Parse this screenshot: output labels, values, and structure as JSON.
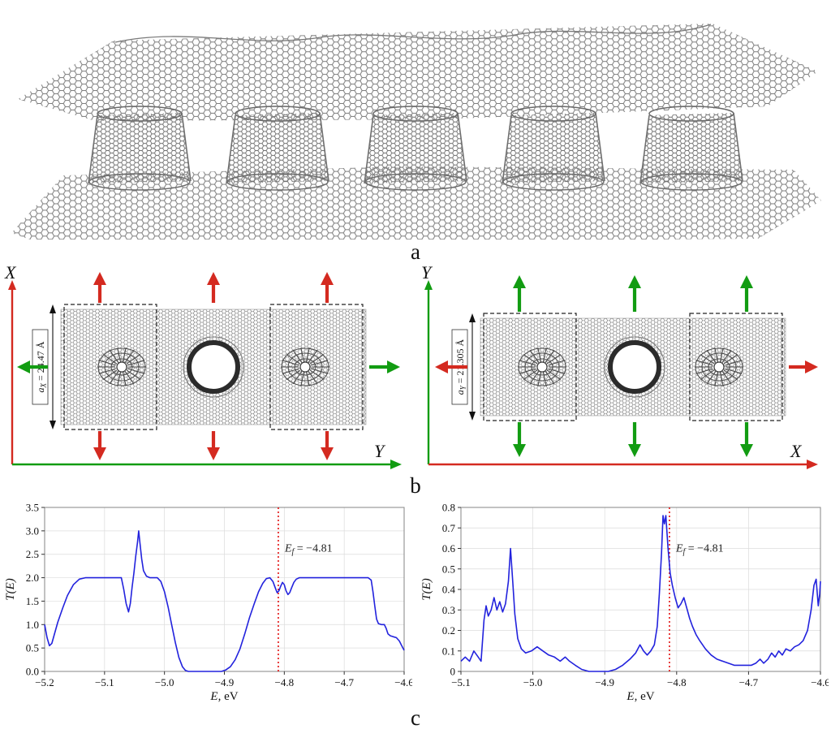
{
  "figure": {
    "panel_a_label": "a",
    "panel_b_label": "b",
    "panel_c_label": "c"
  },
  "panel_b": {
    "left": {
      "vaxis_label": "X",
      "haxis_label": "Y",
      "vaxis_color": "#d42a20",
      "haxis_color": "#129c12",
      "vert_arrow_color": "#d42a20",
      "horiz_arrow_color": "#129c12",
      "dim_sym": "a",
      "dim_sub": "X",
      "dim_rest": " = 24.47 Å"
    },
    "right": {
      "vaxis_label": "Y",
      "haxis_label": "X",
      "vaxis_color": "#129c12",
      "haxis_color": "#d42a20",
      "vert_arrow_color": "#129c12",
      "horiz_arrow_color": "#d42a20",
      "dim_sym": "a",
      "dim_sub": "Y",
      "dim_rest": " = 21.305 Å"
    }
  },
  "chart_data": [
    {
      "type": "line",
      "title": "",
      "xlabel": "E, eV",
      "xlabel_italic": "E",
      "xlabel_rest": ", eV",
      "ylabel": "T(E)",
      "xlim": [
        -5.2,
        -4.6
      ],
      "ylim": [
        0,
        3.5
      ],
      "grid": true,
      "legend": "none",
      "xtick_values": [
        -5.2,
        -5.1,
        -5.0,
        -4.9,
        -4.8,
        -4.7,
        -4.6
      ],
      "xtick_labels": [
        "−5.2",
        "−5.1",
        "−5.0",
        "−4.9",
        "−4.8",
        "−4.7",
        "−4.6"
      ],
      "ytick_values": [
        0,
        0.5,
        1.0,
        1.5,
        2.0,
        2.5,
        3.0,
        3.5
      ],
      "ytick_labels": [
        "0.0",
        "0.5",
        "1.0",
        "1.5",
        "2.0",
        "2.5",
        "3.0",
        "3.5"
      ],
      "line_color": "#2222dd",
      "fermi_x": -4.81,
      "fermi_color": "#e00000",
      "fermi_sym": "E",
      "fermi_sub": "f",
      "fermi_rest": " = −4.81",
      "x": [
        -5.2,
        -5.196,
        -5.192,
        -5.188,
        -5.184,
        -5.178,
        -5.17,
        -5.162,
        -5.152,
        -5.142,
        -5.132,
        -5.12,
        -5.1,
        -5.08,
        -5.072,
        -5.068,
        -5.064,
        -5.06,
        -5.057,
        -5.054,
        -5.051,
        -5.048,
        -5.045,
        -5.043,
        -5.041,
        -5.038,
        -5.035,
        -5.03,
        -5.024,
        -5.012,
        -5.006,
        -5.0,
        -4.994,
        -4.988,
        -4.982,
        -4.976,
        -4.97,
        -4.965,
        -4.96,
        -4.94,
        -4.92,
        -4.905,
        -4.898,
        -4.89,
        -4.882,
        -4.874,
        -4.866,
        -4.858,
        -4.85,
        -4.843,
        -4.836,
        -4.83,
        -4.824,
        -4.819,
        -4.815,
        -4.812,
        -4.809,
        -4.806,
        -4.803,
        -4.8,
        -4.797,
        -4.794,
        -4.791,
        -4.788,
        -4.784,
        -4.78,
        -4.775,
        -4.76,
        -4.74,
        -4.72,
        -4.7,
        -4.68,
        -4.66,
        -4.655,
        -4.652,
        -4.649,
        -4.646,
        -4.643,
        -4.638,
        -4.633,
        -4.63,
        -4.627,
        -4.623,
        -4.618,
        -4.613,
        -4.608,
        -4.604,
        -4.6
      ],
      "y": [
        1.0,
        0.72,
        0.55,
        0.6,
        0.78,
        1.05,
        1.35,
        1.62,
        1.85,
        1.97,
        2.0,
        2.0,
        2.0,
        2.0,
        2.0,
        1.75,
        1.45,
        1.27,
        1.45,
        1.8,
        2.1,
        2.45,
        2.75,
        3.0,
        2.75,
        2.4,
        2.15,
        2.03,
        2.0,
        2.0,
        1.92,
        1.7,
        1.38,
        1.0,
        0.62,
        0.3,
        0.1,
        0.02,
        0.0,
        0.0,
        0.0,
        0.0,
        0.03,
        0.1,
        0.25,
        0.48,
        0.8,
        1.15,
        1.45,
        1.7,
        1.88,
        1.98,
        2.0,
        1.92,
        1.78,
        1.68,
        1.72,
        1.82,
        1.9,
        1.85,
        1.72,
        1.64,
        1.68,
        1.78,
        1.9,
        1.97,
        2.0,
        2.0,
        2.0,
        2.0,
        2.0,
        2.0,
        2.0,
        1.95,
        1.7,
        1.4,
        1.12,
        1.02,
        1.0,
        1.0,
        0.92,
        0.8,
        0.76,
        0.74,
        0.72,
        0.65,
        0.55,
        0.45
      ]
    },
    {
      "type": "line",
      "title": "",
      "xlabel": "E, eV",
      "xlabel_italic": "E",
      "xlabel_rest": ", eV",
      "ylabel": "T(E)",
      "xlim": [
        -5.1,
        -4.6
      ],
      "ylim": [
        0,
        0.8
      ],
      "grid": true,
      "legend": "none",
      "xtick_values": [
        -5.1,
        -5.0,
        -4.9,
        -4.8,
        -4.7,
        -4.6
      ],
      "xtick_labels": [
        "−5.1",
        "−5.0",
        "−4.9",
        "−4.8",
        "−4.7",
        "−4.6"
      ],
      "ytick_values": [
        0,
        0.1,
        0.2,
        0.3,
        0.4,
        0.5,
        0.6,
        0.7,
        0.8
      ],
      "ytick_labels": [
        "0",
        "0.1",
        "0.2",
        "0.3",
        "0.4",
        "0.5",
        "0.6",
        "0.7",
        "0.8"
      ],
      "line_color": "#2222dd",
      "fermi_x": -4.81,
      "fermi_color": "#e00000",
      "fermi_sym": "E",
      "fermi_sub": "f",
      "fermi_rest": " = −4.81",
      "x": [
        -5.1,
        -5.094,
        -5.088,
        -5.082,
        -5.076,
        -5.072,
        -5.068,
        -5.065,
        -5.062,
        -5.058,
        -5.054,
        -5.05,
        -5.046,
        -5.042,
        -5.038,
        -5.034,
        -5.031,
        -5.028,
        -5.025,
        -5.021,
        -5.016,
        -5.01,
        -5.002,
        -4.994,
        -4.986,
        -4.978,
        -4.97,
        -4.962,
        -4.955,
        -4.949,
        -4.941,
        -4.932,
        -4.922,
        -4.91,
        -4.895,
        -4.885,
        -4.875,
        -4.865,
        -4.857,
        -4.851,
        -4.846,
        -4.841,
        -4.836,
        -4.831,
        -4.827,
        -4.824,
        -4.821,
        -4.819,
        -4.817,
        -4.815,
        -4.812,
        -4.809,
        -4.806,
        -4.802,
        -4.798,
        -4.794,
        -4.79,
        -4.786,
        -4.782,
        -4.778,
        -4.773,
        -4.768,
        -4.76,
        -4.752,
        -4.744,
        -4.736,
        -4.728,
        -4.72,
        -4.712,
        -4.704,
        -4.696,
        -4.69,
        -4.684,
        -4.679,
        -4.673,
        -4.668,
        -4.663,
        -4.658,
        -4.653,
        -4.648,
        -4.642,
        -4.636,
        -4.63,
        -4.624,
        -4.618,
        -4.613,
        -4.609,
        -4.606,
        -4.603,
        -4.601,
        -4.6
      ],
      "y": [
        0.05,
        0.07,
        0.05,
        0.1,
        0.07,
        0.05,
        0.25,
        0.32,
        0.27,
        0.3,
        0.36,
        0.3,
        0.34,
        0.29,
        0.33,
        0.44,
        0.6,
        0.44,
        0.28,
        0.16,
        0.11,
        0.09,
        0.1,
        0.12,
        0.1,
        0.08,
        0.07,
        0.05,
        0.07,
        0.05,
        0.03,
        0.01,
        0.0,
        0.0,
        0.0,
        0.01,
        0.03,
        0.06,
        0.09,
        0.13,
        0.1,
        0.08,
        0.1,
        0.13,
        0.22,
        0.38,
        0.58,
        0.76,
        0.72,
        0.76,
        0.6,
        0.48,
        0.42,
        0.36,
        0.31,
        0.33,
        0.36,
        0.31,
        0.26,
        0.22,
        0.18,
        0.15,
        0.11,
        0.08,
        0.06,
        0.05,
        0.04,
        0.03,
        0.03,
        0.03,
        0.03,
        0.04,
        0.06,
        0.04,
        0.06,
        0.09,
        0.07,
        0.1,
        0.08,
        0.11,
        0.1,
        0.12,
        0.13,
        0.15,
        0.2,
        0.3,
        0.42,
        0.45,
        0.32,
        0.38,
        0.44
      ]
    }
  ]
}
